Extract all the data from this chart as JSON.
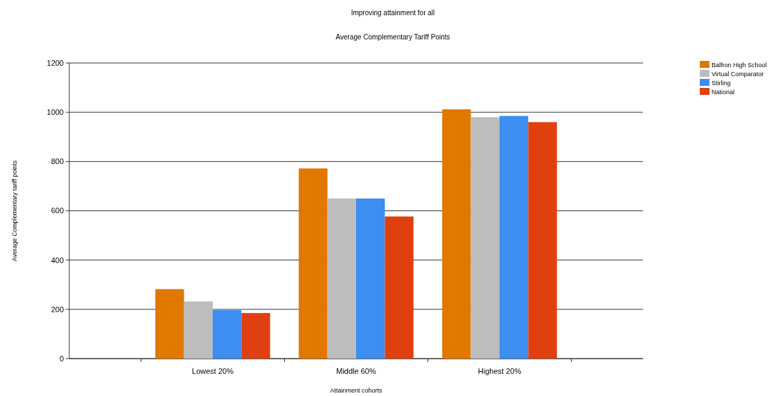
{
  "chart_data": {
    "type": "bar",
    "title": "Improving attainment for all",
    "subtitle": "Average Complementary Tariff Points",
    "xlabel": "Attainment cohorts",
    "ylabel": "Average Complementary tariff points",
    "categories": [
      "Lowest 20%",
      "Middle 60%",
      "Highest 20%"
    ],
    "series": [
      {
        "name": "Balfron High School",
        "color": "#e07800",
        "values": [
          282,
          772,
          1012
        ]
      },
      {
        "name": "Virtual Comparator",
        "color": "#bdbdbd",
        "values": [
          232,
          650,
          980
        ]
      },
      {
        "name": "Stirling",
        "color": "#3d8ef0",
        "values": [
          197,
          650,
          985
        ]
      },
      {
        "name": "National",
        "color": "#e04010",
        "values": [
          185,
          577,
          960
        ]
      }
    ],
    "ylim": [
      0,
      1200
    ],
    "yticks": [
      0,
      200,
      400,
      600,
      800,
      1000,
      1200
    ],
    "grid": "y",
    "legend": "top right"
  }
}
